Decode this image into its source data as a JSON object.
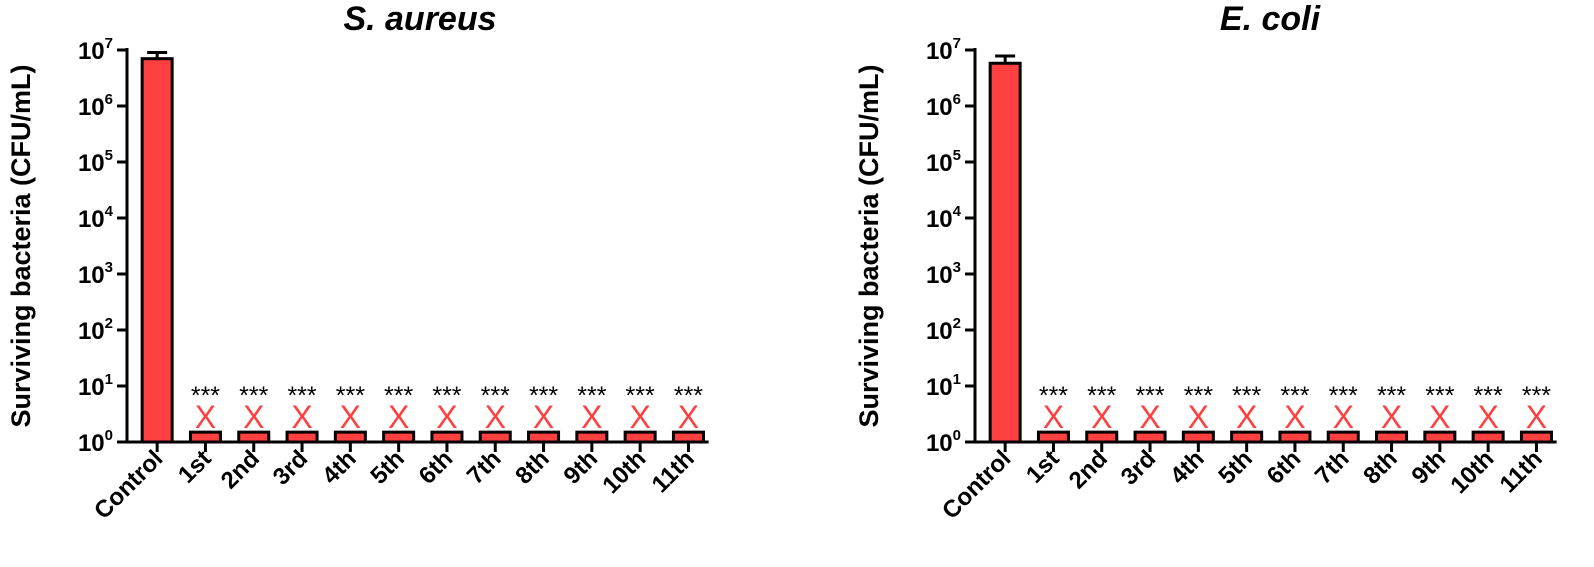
{
  "chart_data": [
    {
      "type": "bar",
      "title": "S. aureus",
      "ylabel": "Surviving bacteria (CFU/mL)",
      "xlabel": "",
      "y_scale": "log10",
      "ylim": [
        1,
        10000000
      ],
      "y_ticks": [
        {
          "base": "10",
          "exp": "0",
          "value": 1
        },
        {
          "base": "10",
          "exp": "1",
          "value": 10
        },
        {
          "base": "10",
          "exp": "2",
          "value": 100
        },
        {
          "base": "10",
          "exp": "3",
          "value": 1000
        },
        {
          "base": "10",
          "exp": "4",
          "value": 10000
        },
        {
          "base": "10",
          "exp": "5",
          "value": 100000
        },
        {
          "base": "10",
          "exp": "6",
          "value": 1000000
        },
        {
          "base": "10",
          "exp": "7",
          "value": 10000000
        }
      ],
      "categories": [
        "Control",
        "1st",
        "2nd",
        "3rd",
        "4th",
        "5th",
        "6th",
        "7th",
        "8th",
        "9th",
        "10th",
        "11th"
      ],
      "values": [
        7000000,
        1.5,
        1.5,
        1.5,
        1.5,
        1.5,
        1.5,
        1.5,
        1.5,
        1.5,
        1.5,
        1.5
      ],
      "error_upper": [
        9000000,
        null,
        null,
        null,
        null,
        null,
        null,
        null,
        null,
        null,
        null,
        null
      ],
      "annotations": [
        "",
        "***",
        "***",
        "***",
        "***",
        "***",
        "***",
        "***",
        "***",
        "***",
        "***",
        "***"
      ],
      "markers": [
        "",
        "X",
        "X",
        "X",
        "X",
        "X",
        "X",
        "X",
        "X",
        "X",
        "X",
        "X"
      ],
      "bar_color": "#ff4040",
      "marker_color": "#ff4040",
      "grid": false
    },
    {
      "type": "bar",
      "title": "E. coli",
      "ylabel": "Surviving bacteria (CFU/mL)",
      "xlabel": "",
      "y_scale": "log10",
      "ylim": [
        1,
        10000000
      ],
      "y_ticks": [
        {
          "base": "10",
          "exp": "0",
          "value": 1
        },
        {
          "base": "10",
          "exp": "1",
          "value": 10
        },
        {
          "base": "10",
          "exp": "2",
          "value": 100
        },
        {
          "base": "10",
          "exp": "3",
          "value": 1000
        },
        {
          "base": "10",
          "exp": "4",
          "value": 10000
        },
        {
          "base": "10",
          "exp": "5",
          "value": 100000
        },
        {
          "base": "10",
          "exp": "6",
          "value": 1000000
        },
        {
          "base": "10",
          "exp": "7",
          "value": 10000000
        }
      ],
      "categories": [
        "Control",
        "1st",
        "2nd",
        "3rd",
        "4th",
        "5th",
        "6th",
        "7th",
        "8th",
        "9th",
        "10th",
        "11th"
      ],
      "values": [
        5800000,
        1.5,
        1.5,
        1.5,
        1.5,
        1.5,
        1.5,
        1.5,
        1.5,
        1.5,
        1.5,
        1.5
      ],
      "error_upper": [
        7800000,
        null,
        null,
        null,
        null,
        null,
        null,
        null,
        null,
        null,
        null,
        null
      ],
      "annotations": [
        "",
        "***",
        "***",
        "***",
        "***",
        "***",
        "***",
        "***",
        "***",
        "***",
        "***",
        "***"
      ],
      "markers": [
        "",
        "X",
        "X",
        "X",
        "X",
        "X",
        "X",
        "X",
        "X",
        "X",
        "X",
        "X"
      ],
      "bar_color": "#ff4040",
      "marker_color": "#ff4040",
      "grid": false
    }
  ]
}
